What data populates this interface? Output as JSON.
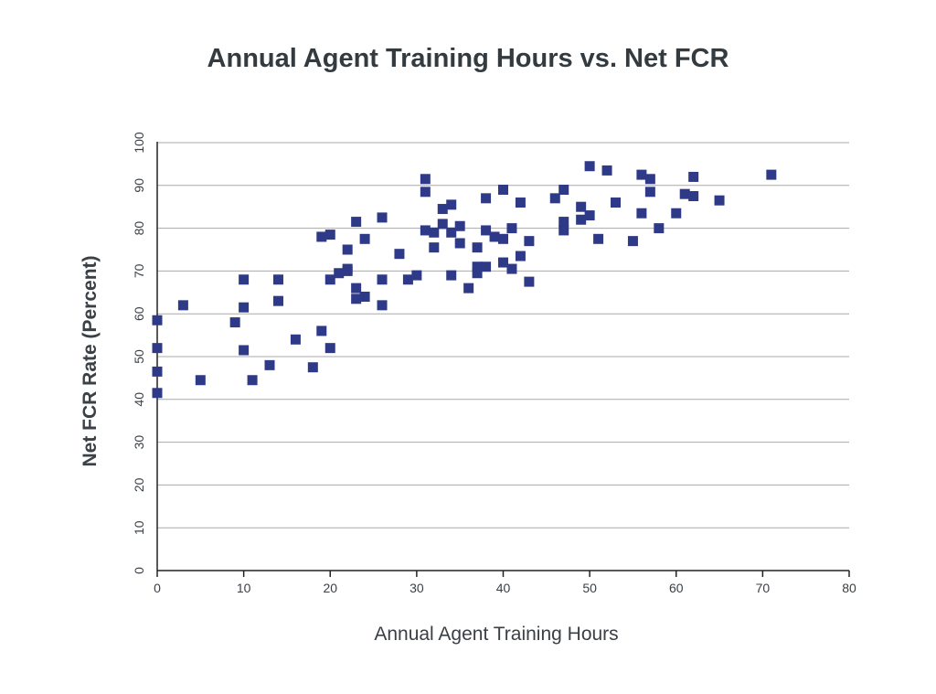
{
  "chart_data": {
    "type": "scatter",
    "title": "Annual Agent Training Hours vs. Net FCR",
    "xlabel": "Annual Agent Training Hours",
    "ylabel": "Net FCR Rate (Percent)",
    "xlim": [
      0,
      80
    ],
    "ylim": [
      0,
      100
    ],
    "x_ticks": [
      0,
      10,
      20,
      30,
      40,
      50,
      60,
      70,
      80
    ],
    "y_ticks": [
      0,
      10,
      20,
      30,
      40,
      50,
      60,
      70,
      80,
      90,
      100
    ],
    "grid": "horizontal",
    "marker_color": "#2e3a87",
    "points": [
      [
        0,
        58.5
      ],
      [
        0,
        52
      ],
      [
        0,
        46.5
      ],
      [
        0,
        41.5
      ],
      [
        3,
        62
      ],
      [
        5,
        44.5
      ],
      [
        9,
        58
      ],
      [
        10,
        68
      ],
      [
        10,
        61.5
      ],
      [
        10,
        51.5
      ],
      [
        11,
        44.5
      ],
      [
        13,
        48
      ],
      [
        14,
        68
      ],
      [
        14,
        63
      ],
      [
        16,
        54
      ],
      [
        18,
        47.5
      ],
      [
        19,
        78
      ],
      [
        19,
        56
      ],
      [
        20,
        78.5
      ],
      [
        20,
        68
      ],
      [
        20,
        52
      ],
      [
        21,
        69.5
      ],
      [
        22,
        75
      ],
      [
        22,
        70.5
      ],
      [
        22,
        70
      ],
      [
        23,
        81.5
      ],
      [
        23,
        66
      ],
      [
        23,
        63.5
      ],
      [
        24,
        77.5
      ],
      [
        24,
        64
      ],
      [
        26,
        82.5
      ],
      [
        26,
        68
      ],
      [
        26,
        62
      ],
      [
        28,
        74
      ],
      [
        29,
        68
      ],
      [
        30,
        69
      ],
      [
        31,
        91.5
      ],
      [
        31,
        88.5
      ],
      [
        31,
        79.5
      ],
      [
        32,
        79
      ],
      [
        32,
        75.5
      ],
      [
        33,
        84.5
      ],
      [
        33,
        81
      ],
      [
        34,
        85.5
      ],
      [
        34,
        79
      ],
      [
        34,
        69
      ],
      [
        35,
        80.5
      ],
      [
        35,
        76.5
      ],
      [
        36,
        66
      ],
      [
        37,
        75.5
      ],
      [
        37,
        71
      ],
      [
        37,
        69.5
      ],
      [
        38,
        87
      ],
      [
        38,
        79.5
      ],
      [
        38,
        71
      ],
      [
        39,
        78
      ],
      [
        40,
        89
      ],
      [
        40,
        77.5
      ],
      [
        40,
        72
      ],
      [
        41,
        80
      ],
      [
        41,
        70.5
      ],
      [
        42,
        86
      ],
      [
        42,
        73.5
      ],
      [
        43,
        77
      ],
      [
        43,
        67.5
      ],
      [
        46,
        87
      ],
      [
        47,
        89
      ],
      [
        47,
        81.5
      ],
      [
        47,
        79.5
      ],
      [
        49,
        85
      ],
      [
        49,
        82
      ],
      [
        50,
        94.5
      ],
      [
        50,
        83
      ],
      [
        51,
        77.5
      ],
      [
        52,
        93.5
      ],
      [
        53,
        86
      ],
      [
        55,
        77
      ],
      [
        56,
        92.5
      ],
      [
        56,
        83.5
      ],
      [
        57,
        91.5
      ],
      [
        57,
        88.5
      ],
      [
        58,
        80
      ],
      [
        60,
        83.5
      ],
      [
        61,
        88
      ],
      [
        62,
        92
      ],
      [
        62,
        87.5
      ],
      [
        65,
        86.5
      ],
      [
        71,
        92.5
      ]
    ]
  }
}
